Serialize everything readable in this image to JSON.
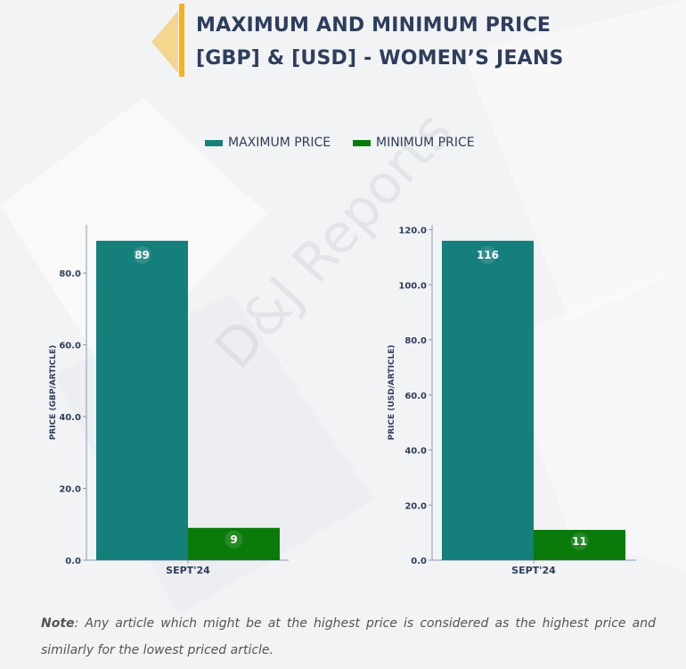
{
  "header": {
    "title_line1": "MAXIMUM AND MINIMUM PRICE",
    "title_line2": "[GBP] & [USD] - WOMEN’S JEANS"
  },
  "legend": {
    "items": [
      {
        "label": "MAXIMUM PRICE",
        "color": "#157f7b"
      },
      {
        "label": "MINIMUM PRICE",
        "color": "#0a7a0a"
      }
    ]
  },
  "watermark": "D&J Reports",
  "chart_data": [
    {
      "type": "bar",
      "categories": [
        "SEPT'24"
      ],
      "series": [
        {
          "name": "MAXIMUM PRICE",
          "values": [
            89
          ],
          "color": "#157f7b"
        },
        {
          "name": "MINIMUM PRICE",
          "values": [
            9
          ],
          "color": "#0a7a0a"
        }
      ],
      "data_labels": [
        "89",
        "9"
      ],
      "ylabel": "PRICE (GBP/ARTICLE)",
      "yticks": [
        "0.0",
        "20.0",
        "40.0",
        "60.0",
        "80.0"
      ],
      "tick_values": [
        0,
        20,
        40,
        60,
        80
      ],
      "ylim": [
        0,
        93.45
      ]
    },
    {
      "type": "bar",
      "categories": [
        "SEPT'24"
      ],
      "series": [
        {
          "name": "MAXIMUM PRICE",
          "values": [
            116
          ],
          "color": "#157f7b"
        },
        {
          "name": "MINIMUM PRICE",
          "values": [
            11
          ],
          "color": "#0a7a0a"
        }
      ],
      "data_labels": [
        "116",
        "11"
      ],
      "ylabel": "PRICE (USD/ARTICLE)",
      "yticks": [
        "0.0",
        "20.0",
        "40.0",
        "60.0",
        "80.0",
        "100.0",
        "120.0"
      ],
      "tick_values": [
        0,
        20,
        40,
        60,
        80,
        100,
        120
      ],
      "ylim": [
        0,
        121.8
      ]
    }
  ],
  "note": {
    "label": "Note",
    "text": ": Any article which might be at the highest price is considered as the highest price and similarly for the lowest priced article."
  }
}
